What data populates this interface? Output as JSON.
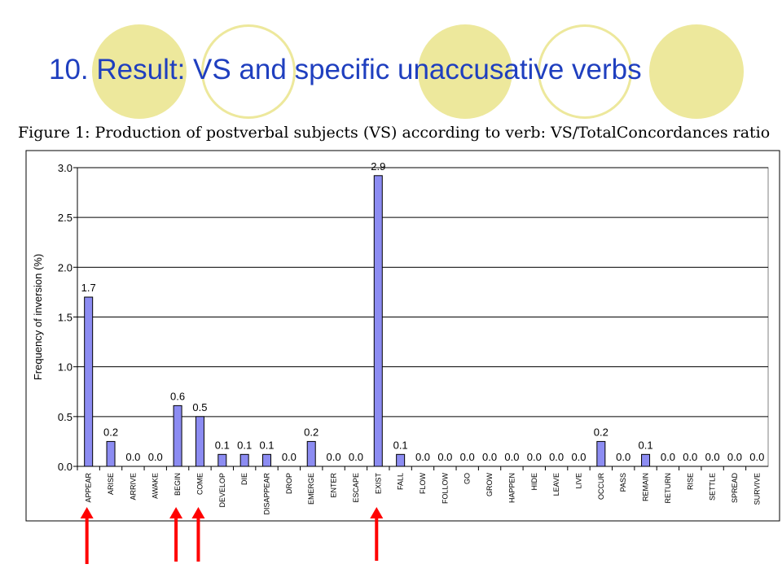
{
  "slide": {
    "title": "10. Result: VS and specific unaccusative verbs",
    "accent_color": "#1f3fbf",
    "decor_color": "#ede89c"
  },
  "chart_data": {
    "type": "bar",
    "title": "Figure 1: Production of postverbal subjects (VS) according to verb: VS/TotalConcordances ratio",
    "xlabel": "",
    "ylabel": "Frequency of inversion (%)",
    "ylim": [
      0,
      3.0
    ],
    "yticks": [
      "0.0",
      "0.5",
      "1.0",
      "1.5",
      "2.0",
      "2.5",
      "3.0"
    ],
    "grid": true,
    "legend": "none",
    "bar_color": "#8c8cf2",
    "categories": [
      "APPEAR",
      "ARISE",
      "ARRIVE",
      "AWAKE",
      "BEGIN",
      "COME",
      "DEVELOP",
      "DIE",
      "DISAPPEAR",
      "DROP",
      "EMERGE",
      "ENTER",
      "ESCAPE",
      "EXIST",
      "FALL",
      "FLOW",
      "FOLLOW",
      "GO",
      "GROW",
      "HAPPEN",
      "HIDE",
      "LEAVE",
      "LIVE",
      "OCCUR",
      "PASS",
      "REMAIN",
      "RETURN",
      "RISE",
      "SETTLE",
      "SPREAD",
      "SURVIVE"
    ],
    "values": [
      1.7,
      0.25,
      0.0,
      0.0,
      0.61,
      0.5,
      0.12,
      0.12,
      0.12,
      0.0,
      0.25,
      0.0,
      0.0,
      2.92,
      0.12,
      0.0,
      0.0,
      0.0,
      0.0,
      0.0,
      0.0,
      0.0,
      0.0,
      0.25,
      0.0,
      0.12,
      0.0,
      0.0,
      0.0,
      0.0,
      0.0
    ],
    "data_labels": [
      "1.7",
      "0.2",
      "0.0",
      "0.0",
      "0.6",
      "0.5",
      "0.1",
      "0.1",
      "0.1",
      "0.0",
      "0.2",
      "0.0",
      "0.0",
      "2.9",
      "0.1",
      "0.0",
      "0.0",
      "0.0",
      "0.0",
      "0.0",
      "0.0",
      "0.0",
      "0.0",
      "0.2",
      "0.0",
      "0.1",
      "0.0",
      "0.0",
      "0.0",
      "0.0",
      "0.0"
    ],
    "annotations": {
      "arrows_under": [
        "APPEAR",
        "BEGIN",
        "COME",
        "EXIST"
      ],
      "arrow_color": "#ff0000"
    }
  }
}
